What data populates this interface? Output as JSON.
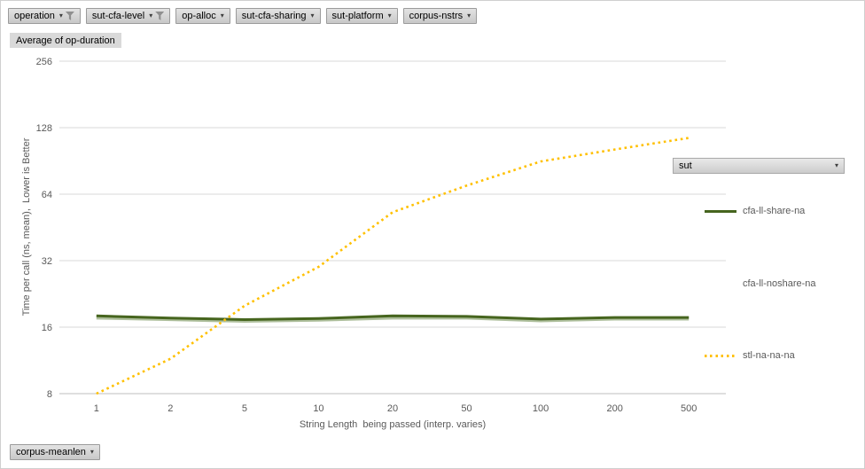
{
  "top_fields": [
    {
      "label": "operation",
      "filter_icon": true
    },
    {
      "label": "sut-cfa-level",
      "filter_icon": true
    },
    {
      "label": "op-alloc",
      "filter_icon": false
    },
    {
      "label": "sut-cfa-sharing",
      "filter_icon": false
    },
    {
      "label": "sut-platform",
      "filter_icon": false
    },
    {
      "label": "corpus-nstrs",
      "filter_icon": false
    }
  ],
  "value_field": {
    "label": "Average of op-duration"
  },
  "legend_field": {
    "label": "sut"
  },
  "bottom_axis_field": {
    "label": "corpus-meanlen"
  },
  "chart_data": {
    "type": "line",
    "x_scale": "log-categories",
    "y_scale": "log2",
    "x": [
      1,
      2,
      5,
      10,
      20,
      50,
      100,
      200,
      500
    ],
    "y_ticks": [
      8,
      16,
      32,
      64,
      128,
      256
    ],
    "ylim": [
      8,
      256
    ],
    "x_axis_title": "String Length  being passed (interp. varies)",
    "y_axis_title": "Time per call (ns, mean),  Lower is Better",
    "legend_position": "right",
    "grid": "horizontal",
    "colors": {
      "gridline": "#d9d9d9",
      "axis_line": "#bfbfbf",
      "axis_text": "#595959"
    },
    "series": [
      {
        "name": "cfa-ll-share-na",
        "color": "#46651e",
        "style": "solid",
        "swatch": "line",
        "z": 1,
        "width": 3,
        "values": [
          18,
          17.6,
          17.3,
          17.5,
          18,
          17.9,
          17.4,
          17.7,
          17.7
        ]
      },
      {
        "name": "cfa-ll-noshare-na",
        "color": "#aebf9c",
        "style": "solid",
        "swatch": "none",
        "z": 0,
        "width": 4.5,
        "values": [
          17.7,
          17.4,
          17.1,
          17.3,
          17.7,
          17.7,
          17.2,
          17.5,
          17.5
        ]
      },
      {
        "name": "stl-na-na-na",
        "color": "#ffc000",
        "style": "dotted",
        "swatch": "dotted",
        "z": 2,
        "width": 2.6,
        "values": [
          8,
          11.5,
          20,
          30,
          53,
          70,
          90,
          102,
          115
        ]
      }
    ]
  }
}
